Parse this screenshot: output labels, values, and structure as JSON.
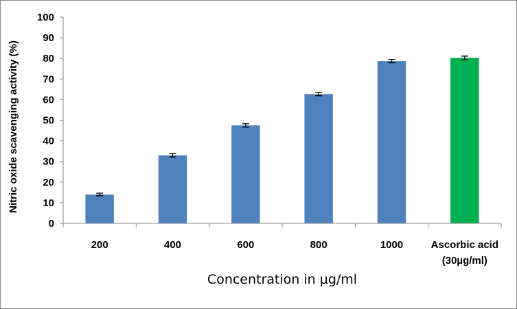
{
  "chart_data": {
    "type": "bar",
    "categories": [
      "200",
      "400",
      "600",
      "800",
      "1000",
      "Ascorbic acid (30µg/ml)"
    ],
    "category_lines": [
      [
        "200"
      ],
      [
        "400"
      ],
      [
        "600"
      ],
      [
        "800"
      ],
      [
        "1000"
      ],
      [
        "Ascorbic acid",
        "(30µg/ml)"
      ]
    ],
    "values": [
      14,
      33,
      47.5,
      62.7,
      78.7,
      80.2
    ],
    "errors": [
      0.6,
      0.8,
      0.8,
      0.8,
      0.8,
      0.9
    ],
    "colors": [
      "#4f81bd",
      "#4f81bd",
      "#4f81bd",
      "#4f81bd",
      "#4f81bd",
      "#00b050"
    ],
    "title": "",
    "xlabel": "Concentration in µg/ml",
    "ylabel": "Nitric oxide scavenging activity (%)",
    "ylim": [
      0,
      100
    ],
    "ytick_step": 10,
    "grid": false,
    "legend": "none"
  }
}
